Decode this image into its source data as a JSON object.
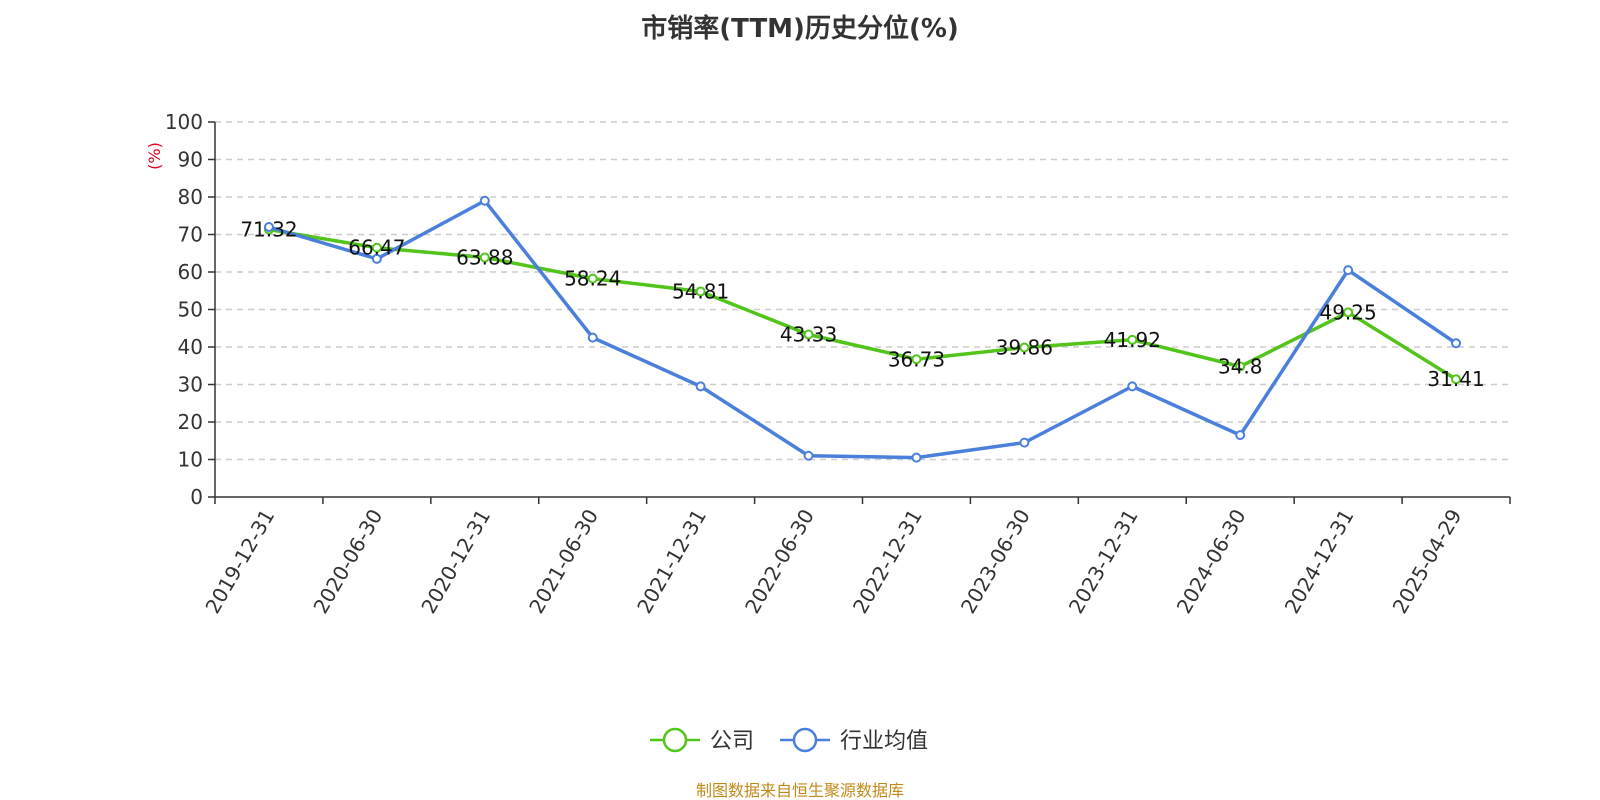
{
  "title": "市销率(TTM)历史分位(%)",
  "source": "制图数据来自恒生聚源数据库",
  "colors": {
    "company": "#52c41a",
    "industry": "#4a7fdb",
    "ylabel": "#e0001b",
    "source": "#c08a1a",
    "grid": "#cccccc",
    "axis": "#333333"
  },
  "chart_data": {
    "type": "line",
    "title": "市销率(TTM)历史分位(%)",
    "ylabel": "(%)",
    "xlabel": "",
    "ylim": [
      0,
      100
    ],
    "yticks": [
      0,
      10,
      20,
      30,
      40,
      50,
      60,
      70,
      80,
      90,
      100
    ],
    "grid": true,
    "legend": "bottom-center",
    "categories": [
      "2019-12-31",
      "2020-06-30",
      "2020-12-31",
      "2021-06-30",
      "2021-12-31",
      "2022-06-30",
      "2022-12-31",
      "2023-06-30",
      "2023-12-31",
      "2024-06-30",
      "2024-12-31",
      "2025-04-29"
    ],
    "series": [
      {
        "name": "公司",
        "color": "#52c41a",
        "values": [
          71.32,
          66.47,
          63.88,
          58.24,
          54.81,
          43.33,
          36.73,
          39.86,
          41.92,
          34.8,
          49.25,
          31.41
        ],
        "labels": [
          "71.32",
          "66.47",
          "63.88",
          "58.24",
          "54.81",
          "43.33",
          "36.73",
          "39.86",
          "41.92",
          "34.8",
          "49.25",
          "31.41"
        ]
      },
      {
        "name": "行业均值",
        "color": "#4a7fdb",
        "values": [
          72,
          63.5,
          79,
          42.5,
          29.5,
          11,
          10.5,
          14.5,
          29.5,
          16.5,
          60.5,
          41
        ]
      }
    ]
  }
}
